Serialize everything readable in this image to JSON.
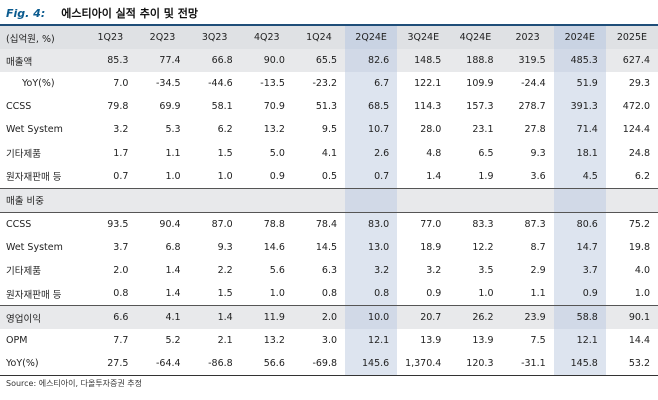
{
  "title": {
    "label": "Fig. 4:",
    "name": "에스티아이 실적 추이 및 전망"
  },
  "header": {
    "unit": "(십억원, %)",
    "columns": [
      "1Q23",
      "2Q23",
      "3Q23",
      "4Q23",
      "1Q24",
      "2Q24E",
      "3Q24E",
      "4Q24E",
      "2023",
      "2024E",
      "2025E"
    ]
  },
  "rows": [
    {
      "label": "매출액",
      "values": [
        "85.3",
        "77.4",
        "66.8",
        "90.0",
        "65.5",
        "82.6",
        "148.5",
        "188.8",
        "319.5",
        "485.3",
        "627.4"
      ]
    },
    {
      "label": "YoY(%)",
      "values": [
        "7.0",
        "-34.5",
        "-44.6",
        "-13.5",
        "-23.2",
        "6.7",
        "122.1",
        "109.9",
        "-24.4",
        "51.9",
        "29.3"
      ]
    },
    {
      "label": "CCSS",
      "values": [
        "79.8",
        "69.9",
        "58.1",
        "70.9",
        "51.3",
        "68.5",
        "114.3",
        "157.3",
        "278.7",
        "391.3",
        "472.0"
      ]
    },
    {
      "label": "Wet System",
      "values": [
        "3.2",
        "5.3",
        "6.2",
        "13.2",
        "9.5",
        "10.7",
        "28.0",
        "23.1",
        "27.8",
        "71.4",
        "124.4"
      ]
    },
    {
      "label": "기타제품",
      "values": [
        "1.7",
        "1.1",
        "1.5",
        "5.0",
        "4.1",
        "2.6",
        "4.8",
        "6.5",
        "9.3",
        "18.1",
        "24.8"
      ]
    },
    {
      "label": "원자재판매 등",
      "values": [
        "0.7",
        "1.0",
        "1.0",
        "0.9",
        "0.5",
        "0.7",
        "1.4",
        "1.9",
        "3.6",
        "4.5",
        "6.2"
      ]
    },
    {
      "label": "매출 비중",
      "values": [
        "",
        "",
        "",
        "",
        "",
        "",
        "",
        "",
        "",
        "",
        ""
      ]
    },
    {
      "label": "CCSS",
      "values": [
        "93.5",
        "90.4",
        "87.0",
        "78.8",
        "78.4",
        "83.0",
        "77.0",
        "83.3",
        "87.3",
        "80.6",
        "75.2"
      ]
    },
    {
      "label": "Wet System",
      "values": [
        "3.7",
        "6.8",
        "9.3",
        "14.6",
        "14.5",
        "13.0",
        "18.9",
        "12.2",
        "8.7",
        "14.7",
        "19.8"
      ]
    },
    {
      "label": "기타제품",
      "values": [
        "2.0",
        "1.4",
        "2.2",
        "5.6",
        "6.3",
        "3.2",
        "3.2",
        "3.5",
        "2.9",
        "3.7",
        "4.0"
      ]
    },
    {
      "label": "원자재판매 등",
      "values": [
        "0.8",
        "1.4",
        "1.5",
        "1.0",
        "0.8",
        "0.8",
        "0.9",
        "1.0",
        "1.1",
        "0.9",
        "1.0"
      ]
    },
    {
      "label": "영업이익",
      "values": [
        "6.6",
        "4.1",
        "1.4",
        "11.9",
        "2.0",
        "10.0",
        "20.7",
        "26.2",
        "23.9",
        "58.8",
        "90.1"
      ]
    },
    {
      "label": "OPM",
      "values": [
        "7.7",
        "5.2",
        "2.1",
        "13.2",
        "3.0",
        "12.1",
        "13.9",
        "13.9",
        "7.5",
        "12.1",
        "14.4"
      ]
    },
    {
      "label": "YoY(%)",
      "values": [
        "27.5",
        "-64.4",
        "-86.8",
        "56.6",
        "-69.8",
        "145.6",
        "1,370.4",
        "120.3",
        "-31.1",
        "145.8",
        "53.2"
      ]
    }
  ],
  "source": "Source: 에스티아이, 다올투자증권 추정",
  "colors": {
    "highlight_column": "#dde4ef",
    "header_band": "#dfe1e4",
    "rule": "#1f4e79",
    "title_accent": "#0b5b8f"
  }
}
